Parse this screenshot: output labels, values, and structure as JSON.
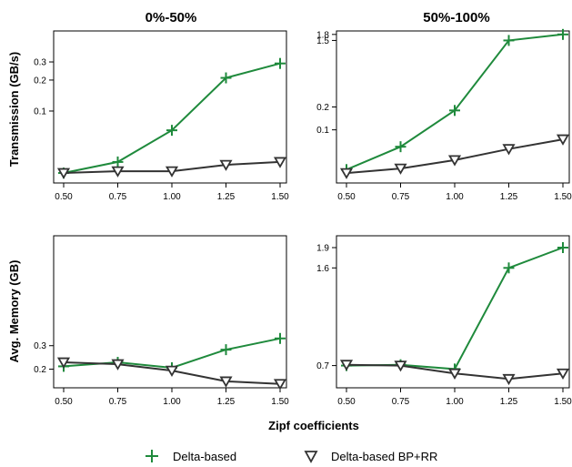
{
  "figure": {
    "column_titles": [
      "0%-50%",
      "50%-100%"
    ],
    "row_ylabels": [
      "Transmission (GB/s)",
      "Avg. Memory (GB)"
    ],
    "xlabel": "Zipf coefficients"
  },
  "legend": {
    "items": [
      {
        "label": "Delta-based",
        "marker": "plus-marker",
        "color": "#1f8a3c"
      },
      {
        "label": "Delta-based BP+RR",
        "marker": "triangle-down-marker",
        "color": "#333333"
      }
    ]
  },
  "colors": {
    "delta": "#1f8a3c",
    "bprr": "#333333"
  },
  "chart_data": [
    {
      "type": "line",
      "panel": "transmission-0-50",
      "title": "0%-50%",
      "ylabel": "Transmission (GB/s)",
      "x": [
        0.5,
        0.75,
        1.0,
        1.25,
        1.5
      ],
      "x_ticks": [
        "0.50",
        "0.75",
        "1.00",
        "1.25",
        "1.50"
      ],
      "y_scale": "log",
      "ylim": [
        0.02,
        0.6
      ],
      "y_ticks": [
        0.1,
        0.2,
        0.3
      ],
      "y_tick_labels": [
        "0.1",
        "0.2",
        "0.3"
      ],
      "series": [
        {
          "name": "Delta-based",
          "values": [
            0.025,
            0.032,
            0.065,
            0.21,
            0.29
          ]
        },
        {
          "name": "Delta-based BP+RR",
          "values": [
            0.025,
            0.026,
            0.026,
            0.03,
            0.032
          ]
        }
      ]
    },
    {
      "type": "line",
      "panel": "transmission-50-100",
      "title": "50%-100%",
      "ylabel": "",
      "x": [
        0.5,
        0.75,
        1.0,
        1.25,
        1.5
      ],
      "x_ticks": [
        "0.50",
        "0.75",
        "1.00",
        "1.25",
        "1.50"
      ],
      "y_scale": "log",
      "ylim": [
        0.02,
        2.0
      ],
      "y_ticks": [
        0.1,
        0.2,
        1.5,
        1.8
      ],
      "y_tick_labels": [
        "0.1",
        "0.2",
        "1.5",
        "1.8"
      ],
      "series": [
        {
          "name": "Delta-based",
          "values": [
            0.03,
            0.06,
            0.18,
            1.5,
            1.8
          ]
        },
        {
          "name": "Delta-based BP+RR",
          "values": [
            0.027,
            0.031,
            0.04,
            0.056,
            0.075
          ]
        }
      ]
    },
    {
      "type": "line",
      "panel": "memory-0-50",
      "title": "",
      "ylabel": "Avg. Memory (GB)",
      "x": [
        0.5,
        0.75,
        1.0,
        1.25,
        1.5
      ],
      "x_ticks": [
        "0.50",
        "0.75",
        "1.00",
        "1.25",
        "1.50"
      ],
      "y_scale": "log",
      "ylim": [
        0.145,
        2.0
      ],
      "y_ticks": [
        0.2,
        0.3
      ],
      "y_tick_labels": [
        "0.2",
        "0.3"
      ],
      "series": [
        {
          "name": "Delta-based",
          "values": [
            0.21,
            0.225,
            0.205,
            0.28,
            0.34
          ]
        },
        {
          "name": "Delta-based BP+RR",
          "values": [
            0.225,
            0.218,
            0.195,
            0.162,
            0.155
          ]
        }
      ]
    },
    {
      "type": "line",
      "panel": "memory-50-100",
      "title": "",
      "ylabel": "",
      "x": [
        0.5,
        0.75,
        1.0,
        1.25,
        1.5
      ],
      "x_ticks": [
        "0.50",
        "0.75",
        "1.00",
        "1.25",
        "1.50"
      ],
      "y_scale": "log",
      "ylim": [
        0.58,
        2.1
      ],
      "y_ticks": [
        0.7,
        1.6,
        1.9
      ],
      "y_tick_labels": [
        "0.7",
        "1.6",
        "1.9"
      ],
      "series": [
        {
          "name": "Delta-based",
          "values": [
            0.7,
            0.705,
            0.68,
            1.6,
            1.9
          ]
        },
        {
          "name": "Delta-based BP+RR",
          "values": [
            0.705,
            0.7,
            0.655,
            0.625,
            0.655
          ]
        }
      ]
    }
  ]
}
